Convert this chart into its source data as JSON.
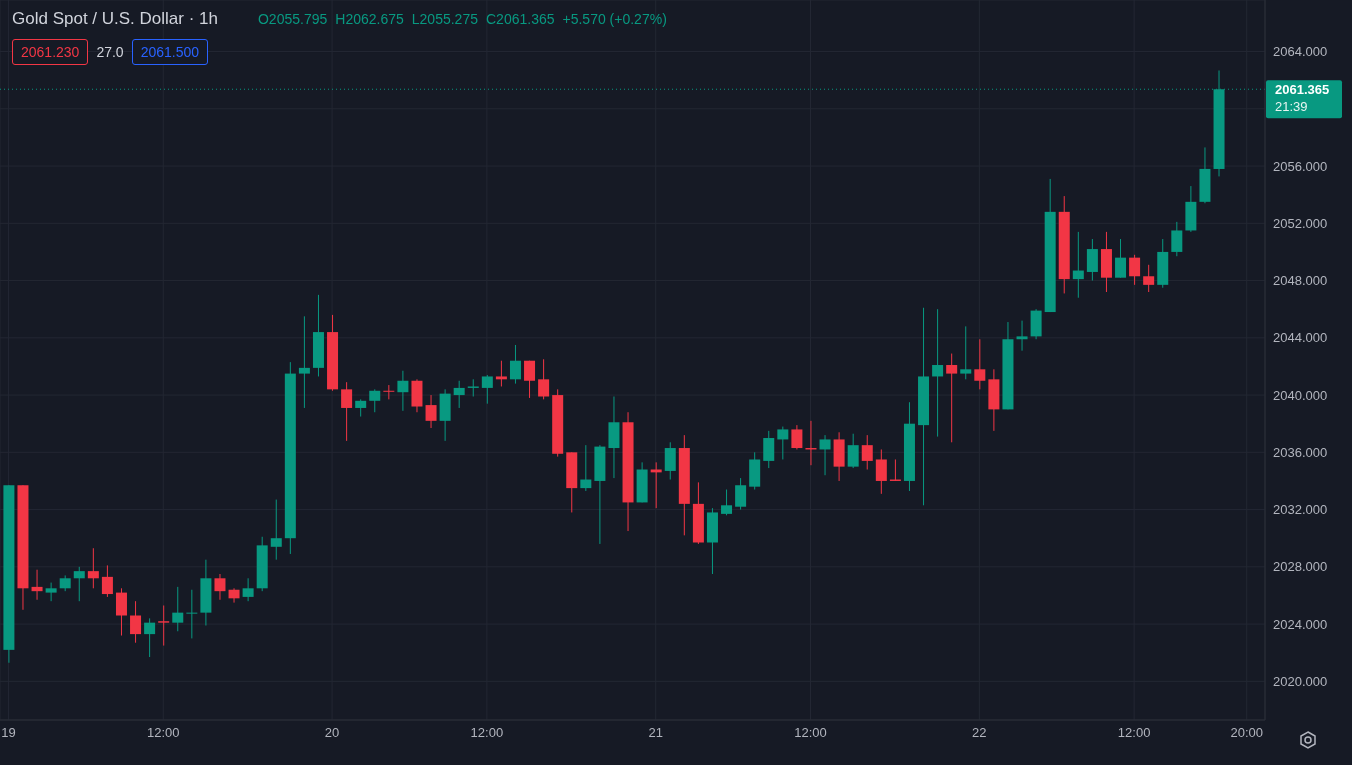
{
  "chart_data": {
    "type": "candlestick",
    "title": "Gold Spot / U.S. Dollar · 1h",
    "categories": [
      "19",
      null,
      null,
      null,
      null,
      null,
      null,
      null,
      null,
      null,
      null,
      "12:00",
      null,
      null,
      null,
      null,
      null,
      null,
      null,
      null,
      null,
      null,
      null,
      "20",
      null,
      null,
      null,
      null,
      null,
      null,
      null,
      null,
      null,
      null,
      "12:00",
      null,
      null,
      null,
      null,
      null,
      null,
      null,
      null,
      null,
      null,
      null,
      "21",
      null,
      null,
      null,
      null,
      null,
      null,
      null,
      null,
      null,
      null,
      "12:00",
      null,
      null,
      null,
      null,
      null,
      null,
      null,
      null,
      null,
      null,
      null,
      "22",
      null,
      null,
      null,
      null,
      null,
      null,
      null,
      null,
      null,
      null,
      "12:00",
      null,
      null,
      null,
      null,
      null,
      null,
      null,
      "20:00",
      null
    ],
    "ohlc": [
      [
        2022.2,
        2033.7,
        2021.3,
        2033.7
      ],
      [
        2033.7,
        2033.7,
        2025.0,
        2026.5
      ],
      [
        2026.6,
        2027.8,
        2025.7,
        2026.3
      ],
      [
        2026.2,
        2026.9,
        2025.6,
        2026.5
      ],
      [
        2026.5,
        2027.4,
        2026.3,
        2027.2
      ],
      [
        2027.2,
        2028.0,
        2025.6,
        2027.7
      ],
      [
        2027.7,
        2029.3,
        2026.5,
        2027.2
      ],
      [
        2027.3,
        2028.1,
        2025.9,
        2026.1
      ],
      [
        2026.2,
        2026.5,
        2023.2,
        2024.6
      ],
      [
        2024.6,
        2025.6,
        2022.7,
        2023.3
      ],
      [
        2023.3,
        2024.4,
        2021.7,
        2024.1
      ],
      [
        2024.2,
        2025.3,
        2022.5,
        2024.1
      ],
      [
        2024.1,
        2026.6,
        2023.5,
        2024.8
      ],
      [
        2024.8,
        2026.4,
        2023.0,
        2024.8
      ],
      [
        2024.8,
        2028.5,
        2023.9,
        2027.2
      ],
      [
        2027.2,
        2027.5,
        2025.7,
        2026.3
      ],
      [
        2026.4,
        2026.5,
        2025.5,
        2025.8
      ],
      [
        2025.9,
        2027.2,
        2025.6,
        2026.5
      ],
      [
        2026.5,
        2030.1,
        2026.3,
        2029.5
      ],
      [
        2029.4,
        2032.7,
        2028.5,
        2030.0
      ],
      [
        2030.0,
        2042.3,
        2028.9,
        2041.5
      ],
      [
        2041.5,
        2045.5,
        2039.1,
        2041.9
      ],
      [
        2041.9,
        2047.0,
        2041.3,
        2044.4
      ],
      [
        2044.4,
        2045.6,
        2040.3,
        2040.4
      ],
      [
        2040.4,
        2040.9,
        2036.8,
        2039.1
      ],
      [
        2039.1,
        2039.7,
        2038.5,
        2039.6
      ],
      [
        2039.6,
        2040.4,
        2038.8,
        2040.3
      ],
      [
        2040.3,
        2040.7,
        2039.7,
        2040.3
      ],
      [
        2040.2,
        2041.7,
        2038.9,
        2041.0
      ],
      [
        2041.0,
        2041.1,
        2038.8,
        2039.2
      ],
      [
        2039.3,
        2040.0,
        2037.7,
        2038.2
      ],
      [
        2038.2,
        2040.4,
        2036.8,
        2040.1
      ],
      [
        2040.0,
        2041.0,
        2039.1,
        2040.5
      ],
      [
        2040.5,
        2041.1,
        2039.9,
        2040.6
      ],
      [
        2040.5,
        2041.4,
        2039.4,
        2041.3
      ],
      [
        2041.3,
        2042.4,
        2040.6,
        2041.1
      ],
      [
        2041.1,
        2043.5,
        2040.8,
        2042.4
      ],
      [
        2042.4,
        2042.4,
        2039.8,
        2041.0
      ],
      [
        2041.1,
        2042.5,
        2039.7,
        2039.9
      ],
      [
        2040.0,
        2040.4,
        2035.7,
        2035.9
      ],
      [
        2036.0,
        2036.0,
        2031.8,
        2033.5
      ],
      [
        2033.5,
        2036.5,
        2033.3,
        2034.1
      ],
      [
        2034.0,
        2036.5,
        2029.6,
        2036.4
      ],
      [
        2036.3,
        2039.9,
        2034.2,
        2038.1
      ],
      [
        2038.1,
        2038.8,
        2030.5,
        2032.5
      ],
      [
        2032.5,
        2035.3,
        2032.5,
        2034.8
      ],
      [
        2034.8,
        2035.3,
        2032.1,
        2034.6
      ],
      [
        2034.7,
        2036.7,
        2034.1,
        2036.3
      ],
      [
        2036.3,
        2037.2,
        2030.2,
        2032.4
      ],
      [
        2032.4,
        2033.9,
        2029.6,
        2029.7
      ],
      [
        2029.7,
        2032.1,
        2027.5,
        2031.8
      ],
      [
        2031.7,
        2033.4,
        2031.6,
        2032.3
      ],
      [
        2032.2,
        2034.2,
        2032.0,
        2033.7
      ],
      [
        2033.6,
        2036.0,
        2033.4,
        2035.5
      ],
      [
        2035.4,
        2037.5,
        2034.9,
        2037.0
      ],
      [
        2036.9,
        2037.8,
        2035.5,
        2037.6
      ],
      [
        2037.6,
        2037.9,
        2036.2,
        2036.3
      ],
      [
        2036.3,
        2038.2,
        2035.1,
        2036.2
      ],
      [
        2036.2,
        2037.2,
        2034.4,
        2036.9
      ],
      [
        2036.9,
        2037.4,
        2034.0,
        2035.0
      ],
      [
        2035.0,
        2037.3,
        2034.9,
        2036.5
      ],
      [
        2036.5,
        2037.2,
        2034.8,
        2035.4
      ],
      [
        2035.5,
        2036.2,
        2033.1,
        2034.0
      ],
      [
        2034.1,
        2035.5,
        2034.0,
        2034.0
      ],
      [
        2034.0,
        2039.5,
        2033.3,
        2038.0
      ],
      [
        2037.9,
        2046.1,
        2032.3,
        2041.3
      ],
      [
        2041.3,
        2046.0,
        2037.1,
        2042.1
      ],
      [
        2042.1,
        2042.9,
        2036.7,
        2041.5
      ],
      [
        2041.5,
        2044.8,
        2041.1,
        2041.8
      ],
      [
        2041.8,
        2043.9,
        2040.4,
        2041.0
      ],
      [
        2041.1,
        2041.8,
        2037.5,
        2039.0
      ],
      [
        2039.0,
        2045.1,
        2039.0,
        2043.9
      ],
      [
        2043.9,
        2045.2,
        2043.1,
        2044.1
      ],
      [
        2044.1,
        2046.0,
        2043.9,
        2045.9
      ],
      [
        2045.8,
        2055.1,
        2045.8,
        2052.8
      ],
      [
        2052.8,
        2053.9,
        2047.1,
        2048.1
      ],
      [
        2048.1,
        2051.4,
        2046.8,
        2048.7
      ],
      [
        2048.6,
        2050.9,
        2048.0,
        2050.2
      ],
      [
        2050.2,
        2051.4,
        2047.2,
        2048.2
      ],
      [
        2048.2,
        2050.9,
        2048.2,
        2049.6
      ],
      [
        2049.6,
        2049.8,
        2047.7,
        2048.3
      ],
      [
        2048.3,
        2049.1,
        2047.2,
        2047.7
      ],
      [
        2047.7,
        2050.9,
        2047.5,
        2050.0
      ],
      [
        2050.0,
        2052.1,
        2049.7,
        2051.5
      ],
      [
        2051.5,
        2054.6,
        2051.4,
        2053.5
      ],
      [
        2053.5,
        2057.3,
        2053.4,
        2055.8
      ],
      [
        2055.795,
        2062.675,
        2055.275,
        2061.365
      ],
      null,
      null,
      null
    ],
    "colors": [
      "#089981",
      "#f23645",
      "#f23645",
      "#089981",
      "#089981",
      "#089981",
      "#f23645",
      "#f23645",
      "#f23645",
      "#f23645",
      "#089981",
      "#f23645",
      "#089981",
      "#089981",
      "#089981",
      "#f23645",
      "#f23645",
      "#089981",
      "#089981",
      "#089981",
      "#089981",
      "#089981",
      "#089981",
      "#f23645",
      "#f23645",
      "#089981",
      "#089981",
      "#f23645",
      "#089981",
      "#f23645",
      "#f23645",
      "#089981",
      "#089981",
      "#089981",
      "#089981",
      "#f23645",
      "#089981",
      "#f23645",
      "#f23645",
      "#f23645",
      "#f23645",
      "#089981",
      "#089981",
      "#089981",
      "#f23645",
      "#089981",
      "#f23645",
      "#089981",
      "#f23645",
      "#f23645",
      "#089981",
      "#089981",
      "#089981",
      "#089981",
      "#089981",
      "#089981",
      "#f23645",
      "#f23645",
      "#089981",
      "#f23645",
      "#089981",
      "#f23645",
      "#f23645",
      "#f23645",
      "#089981",
      "#089981",
      "#089981",
      "#f23645",
      "#089981",
      "#f23645",
      "#f23645",
      "#089981",
      "#089981",
      "#089981",
      "#089981",
      "#f23645",
      "#089981",
      "#089981",
      "#f23645",
      "#089981",
      "#f23645",
      "#f23645",
      "#089981",
      "#089981",
      "#089981",
      "#089981",
      "#089981",
      null,
      null,
      null
    ],
    "ylim": [
      2017.3,
      2067.6
    ],
    "yticks": [
      {
        "value": 2020,
        "label": "2020.000"
      },
      {
        "value": 2024,
        "label": "2024.000"
      },
      {
        "value": 2028,
        "label": "2028.000"
      },
      {
        "value": 2032,
        "label": "2032.000"
      },
      {
        "value": 2036,
        "label": "2036.000"
      },
      {
        "value": 2040,
        "label": "2040.000"
      },
      {
        "value": 2044,
        "label": "2044.000"
      },
      {
        "value": 2048,
        "label": "2048.000"
      },
      {
        "value": 2052,
        "label": "2052.000"
      },
      {
        "value": 2056,
        "label": "2056.000"
      },
      {
        "value": 2060,
        "label": null
      },
      {
        "value": 2064,
        "label": "2064.000"
      }
    ],
    "grid": true,
    "ref_lines": [
      {
        "axis": "y",
        "value": 2061.365,
        "label": "2061.365",
        "color": "#089981",
        "line_style": "dotted"
      }
    ],
    "annotations": [
      "O2055.795",
      "H2062.675",
      "L2055.275",
      "C2061.365",
      "+5.570 (+0.27%)",
      "2061.230",
      "27.0",
      "2061.500",
      "21:39"
    ]
  }
}
